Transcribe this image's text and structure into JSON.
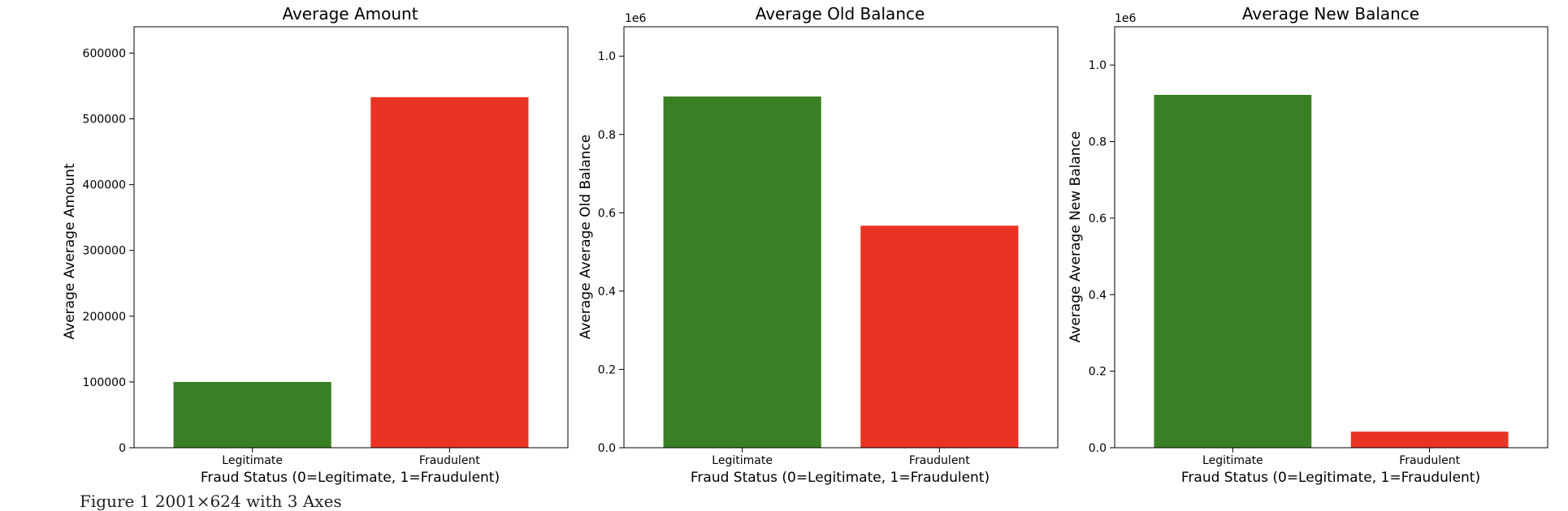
{
  "chart_data": [
    {
      "type": "bar",
      "title": "Average Amount",
      "xlabel": "Fraud Status (0=Legitimate, 1=Fraudulent)",
      "ylabel": "Average Average Amount",
      "categories": [
        "Legitimate",
        "Fraudulent"
      ],
      "values": [
        100000,
        533000
      ],
      "colors": [
        "#388023",
        "#e93323"
      ],
      "ylim": [
        0,
        640000
      ],
      "yticks": [
        0,
        100000,
        200000,
        300000,
        400000,
        500000,
        600000
      ],
      "ytick_labels": [
        "0",
        "100000",
        "200000",
        "300000",
        "400000",
        "500000",
        "600000"
      ],
      "offset_text": "",
      "grid": false,
      "legend": "none"
    },
    {
      "type": "bar",
      "title": "Average Old Balance",
      "xlabel": "Fraud Status (0=Legitimate, 1=Fraudulent)",
      "ylabel": "Average Average Old Balance",
      "categories": [
        "Legitimate",
        "Fraudulent"
      ],
      "values": [
        897000,
        567000
      ],
      "colors": [
        "#388023",
        "#e93323"
      ],
      "ylim": [
        0,
        1075000
      ],
      "yticks": [
        0,
        200000,
        400000,
        600000,
        800000,
        1000000
      ],
      "ytick_labels": [
        "0.0",
        "0.2",
        "0.4",
        "0.6",
        "0.8",
        "1.0"
      ],
      "offset_text": "1e6",
      "grid": false,
      "legend": "none"
    },
    {
      "type": "bar",
      "title": "Average New Balance",
      "xlabel": "Fraud Status (0=Legitimate, 1=Fraudulent)",
      "ylabel": "Average Average New Balance",
      "categories": [
        "Legitimate",
        "Fraudulent"
      ],
      "values": [
        922000,
        42000
      ],
      "colors": [
        "#388023",
        "#e93323"
      ],
      "ylim": [
        0,
        1100000
      ],
      "yticks": [
        0,
        200000,
        400000,
        600000,
        800000,
        1000000
      ],
      "ytick_labels": [
        "0.0",
        "0.2",
        "0.4",
        "0.6",
        "0.8",
        "1.0"
      ],
      "offset_text": "1e6",
      "grid": false,
      "legend": "none"
    }
  ],
  "caption": "Figure 1 2001×624 with 3 Axes"
}
